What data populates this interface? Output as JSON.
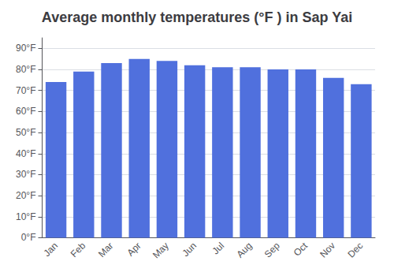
{
  "chart_data": {
    "type": "bar",
    "title": "Average monthly temperatures (°F ) in Sap Yai",
    "categories": [
      "Jan",
      "Feb",
      "Mar",
      "Apr",
      "May",
      "Jun",
      "Jul",
      "Aug",
      "Sep",
      "Oct",
      "Nov",
      "Dec"
    ],
    "values": [
      74,
      79,
      83,
      85,
      84,
      82,
      81,
      81,
      80,
      80,
      76,
      73
    ],
    "ylim": [
      0,
      95
    ],
    "yticks": [
      {
        "value": 0,
        "label": "0°F"
      },
      {
        "value": 10,
        "label": "10°F"
      },
      {
        "value": 20,
        "label": "20°F"
      },
      {
        "value": 30,
        "label": "30°F"
      },
      {
        "value": 40,
        "label": "40°F"
      },
      {
        "value": 50,
        "label": "50°F"
      },
      {
        "value": 60,
        "label": "60°F"
      },
      {
        "value": 70,
        "label": "70°F"
      },
      {
        "value": 80,
        "label": "80°F"
      },
      {
        "value": 90,
        "label": "90°F"
      }
    ],
    "grid": true
  }
}
